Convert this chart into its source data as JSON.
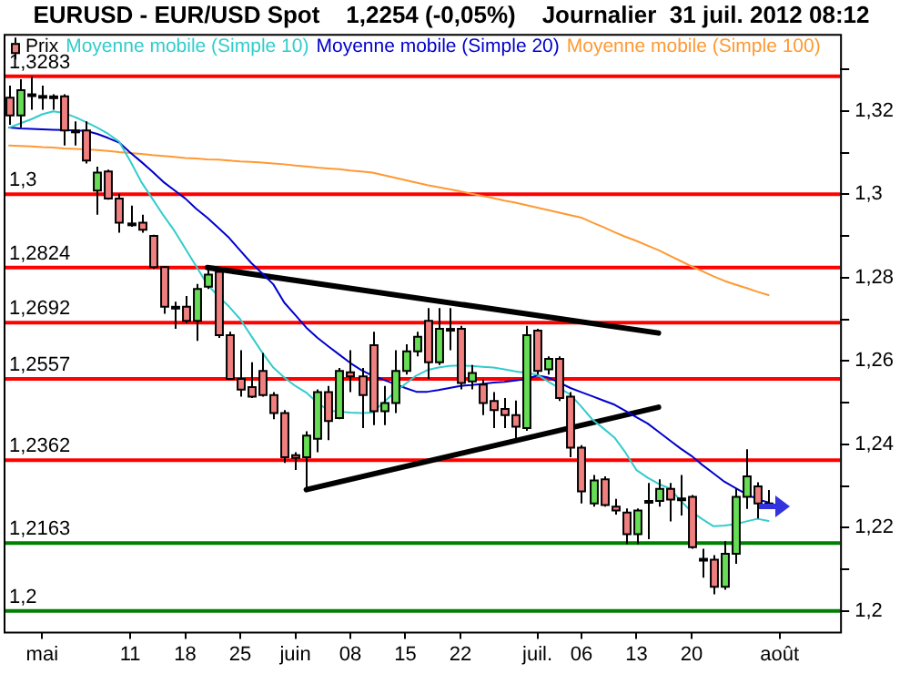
{
  "chart_data": {
    "type": "candlestick",
    "title": "EURUSD - EUR/USD Spot    1,2254 (-0,05%)    Journalier  31 juil. 2012 08:12",
    "categories": [
      null,
      null,
      null,
      "mai",
      null,
      null,
      null,
      null,
      null,
      null,
      null,
      "11",
      null,
      null,
      null,
      null,
      "18",
      null,
      null,
      null,
      null,
      "25",
      null,
      null,
      null,
      null,
      "juin",
      null,
      null,
      null,
      null,
      "08",
      null,
      null,
      null,
      null,
      "15",
      null,
      null,
      null,
      null,
      "22",
      null,
      null,
      null,
      null,
      null,
      null,
      "juil.",
      null,
      null,
      null,
      "06",
      null,
      null,
      null,
      null,
      "13",
      null,
      null,
      null,
      null,
      "20",
      null,
      null,
      null,
      null,
      null,
      null,
      null,
      "août",
      null,
      null,
      null,
      null,
      null
    ],
    "series": [
      {
        "name": "Prix",
        "type": "candlestick",
        "color": "#000000",
        "ohlc": [
          [
            1.3232,
            1.3261,
            1.3167,
            1.3189
          ],
          [
            1.3189,
            1.3276,
            1.316,
            1.325
          ],
          [
            1.324,
            1.3283,
            1.3203,
            1.3238
          ],
          [
            1.3236,
            1.3261,
            1.3203,
            1.3235
          ],
          [
            1.3235,
            1.324,
            1.3203,
            1.3233
          ],
          [
            1.3235,
            1.324,
            1.3117,
            1.3153
          ],
          [
            1.3153,
            1.3175,
            1.3117,
            1.3149
          ],
          [
            1.3153,
            1.3175,
            1.3074,
            1.3081
          ],
          [
            1.3009,
            1.3066,
            1.2951,
            1.3052
          ],
          [
            1.3055,
            1.3059,
            1.2987,
            1.299
          ],
          [
            1.299,
            1.3001,
            1.2908,
            1.2932
          ],
          [
            1.2929,
            1.2973,
            1.2922,
            1.293
          ],
          [
            1.2932,
            1.2951,
            1.2908,
            1.2915
          ],
          [
            1.29,
            1.2903,
            1.2821,
            1.2825
          ],
          [
            1.2825,
            1.2828,
            1.2713,
            1.273
          ],
          [
            1.273,
            1.2742,
            1.2677,
            1.2728
          ],
          [
            1.273,
            1.2756,
            1.2691,
            1.2696
          ],
          [
            1.2696,
            1.2785,
            1.2648,
            1.2773
          ],
          [
            1.2778,
            1.2824,
            1.2773,
            1.2807
          ],
          [
            1.2814,
            1.2821,
            1.2655,
            1.2662
          ],
          [
            1.2662,
            1.267,
            1.2554,
            1.2557
          ],
          [
            1.2557,
            1.2626,
            1.2514,
            1.2531
          ],
          [
            1.2537,
            1.2597,
            1.2511,
            1.2514
          ],
          [
            1.2576,
            1.2619,
            1.2514,
            1.2518
          ],
          [
            1.2518,
            1.2525,
            1.246,
            1.2475
          ],
          [
            1.2475,
            1.2482,
            1.2355,
            1.2369
          ],
          [
            1.2374,
            1.2381,
            1.2338,
            1.2367
          ],
          [
            1.2369,
            1.2431,
            1.2291,
            1.2421
          ],
          [
            1.2413,
            1.2532,
            1.2381,
            1.2525
          ],
          [
            1.2525,
            1.254,
            1.241,
            1.2456
          ],
          [
            1.2463,
            1.2583,
            1.246,
            1.2576
          ],
          [
            1.2573,
            1.2626,
            1.2525,
            1.2563
          ],
          [
            1.2563,
            1.2583,
            1.2439,
            1.2518
          ],
          [
            1.2638,
            1.267,
            1.2446,
            1.2479
          ],
          [
            1.2479,
            1.254,
            1.2446,
            1.2499
          ],
          [
            1.2499,
            1.2626,
            1.2475,
            1.2576
          ],
          [
            1.2576,
            1.264,
            1.2567,
            1.2623
          ],
          [
            1.2623,
            1.267,
            1.2611,
            1.2658
          ],
          [
            1.2696,
            1.2727,
            1.2557,
            1.2597
          ],
          [
            1.2597,
            1.2727,
            1.259,
            1.2677
          ],
          [
            1.2677,
            1.2727,
            1.2626,
            1.2675
          ],
          [
            1.2677,
            1.2684,
            1.2532,
            1.2547
          ],
          [
            1.2551,
            1.259,
            1.2532,
            1.2571
          ],
          [
            1.2543,
            1.2555,
            1.247,
            1.2499
          ],
          [
            1.2504,
            1.2525,
            1.2439,
            1.2482
          ],
          [
            1.2485,
            1.2511,
            1.2439,
            1.247
          ],
          [
            1.247,
            1.2505,
            1.2407,
            1.2442
          ],
          [
            1.2439,
            1.2684,
            1.2432,
            1.2662
          ],
          [
            1.2673,
            1.2677,
            1.2567,
            1.2576
          ],
          [
            1.258,
            1.2611,
            1.2567,
            1.2605
          ],
          [
            1.2605,
            1.2611,
            1.2504,
            1.2511
          ],
          [
            1.2514,
            1.2525,
            1.2369,
            1.2392
          ],
          [
            1.2392,
            1.2398,
            1.2258,
            1.2287
          ],
          [
            1.2258,
            1.2326,
            1.225,
            1.2313
          ],
          [
            1.2316,
            1.2323,
            1.225,
            1.2254
          ],
          [
            1.225,
            1.2269,
            1.2231,
            1.2241
          ],
          [
            1.2236,
            1.2246,
            1.216,
            1.2184
          ],
          [
            1.2184,
            1.2246,
            1.216,
            1.2241
          ],
          [
            1.2264,
            1.2307,
            1.2172,
            1.2262
          ],
          [
            1.2264,
            1.2316,
            1.225,
            1.2293
          ],
          [
            1.2293,
            1.2307,
            1.2215,
            1.2267
          ],
          [
            1.227,
            1.2326,
            1.2229,
            1.2268
          ],
          [
            1.2274,
            1.2278,
            1.2149,
            1.2153
          ],
          [
            1.2125,
            1.2149,
            1.208,
            1.2123
          ],
          [
            1.2123,
            1.2134,
            1.204,
            1.2058
          ],
          [
            1.2058,
            1.2167,
            1.2051,
            1.2137
          ],
          [
            1.2137,
            1.2293,
            1.2113,
            1.2274
          ],
          [
            1.2274,
            1.2388,
            1.2245,
            1.2323
          ],
          [
            1.2299,
            1.2309,
            1.2222,
            1.2258
          ],
          [
            1.2258,
            1.229,
            1.225,
            1.2254
          ],
          null,
          null,
          null,
          null,
          null,
          null
        ],
        "colors": [
          "#f08080",
          "#66dd55",
          "#f08080",
          "#f08080",
          "#f08080",
          "#f08080",
          "#f08080",
          "#f08080",
          "#66dd55",
          "#f08080",
          "#f08080",
          "#66dd55",
          "#f08080",
          "#f08080",
          "#f08080",
          "#f08080",
          "#f08080",
          "#66dd55",
          "#66dd55",
          "#f08080",
          "#f08080",
          "#f08080",
          "#f08080",
          "#f08080",
          "#f08080",
          "#f08080",
          "#f08080",
          "#66dd55",
          "#66dd55",
          "#f08080",
          "#66dd55",
          "#f08080",
          "#f08080",
          "#f08080",
          "#66dd55",
          "#66dd55",
          "#66dd55",
          "#66dd55",
          "#f08080",
          "#66dd55",
          "#f08080",
          "#f08080",
          "#66dd55",
          "#f08080",
          "#f08080",
          "#f08080",
          "#f08080",
          "#66dd55",
          "#f08080",
          "#66dd55",
          "#f08080",
          "#f08080",
          "#f08080",
          "#66dd55",
          "#f08080",
          "#f08080",
          "#f08080",
          "#66dd55",
          "#f08080",
          "#66dd55",
          "#f08080",
          "#f08080",
          "#f08080",
          "#f08080",
          "#f08080",
          "#66dd55",
          "#66dd55",
          "#66dd55",
          "#f08080",
          "#f08080",
          null,
          null,
          null,
          null,
          null,
          null
        ]
      },
      {
        "name": "Moyenne mobile (Simple 10)",
        "type": "line",
        "color": "#33cccc",
        "values": [
          1.316,
          1.317,
          1.318,
          1.3192,
          1.3199,
          1.3195,
          1.3185,
          1.3173,
          1.316,
          1.3145,
          1.3126,
          1.308,
          1.303,
          1.299,
          1.295,
          1.2913,
          1.287,
          1.2827,
          1.2784,
          1.2755,
          1.273,
          1.27,
          1.266,
          1.262,
          1.2584,
          1.256,
          1.254,
          1.2524,
          1.25,
          1.2481,
          1.2478,
          1.2476,
          1.2475,
          1.2476,
          1.25,
          1.2524,
          1.2545,
          1.2565,
          1.2578,
          1.2584,
          1.2588,
          1.2589,
          1.2588,
          1.2586,
          1.2584,
          1.258,
          1.2575,
          1.2571,
          1.2567,
          1.255,
          1.2535,
          1.2519,
          1.249,
          1.2459,
          1.2438,
          1.2416,
          1.238,
          1.2338,
          1.232,
          1.2305,
          1.2294,
          1.2265,
          1.2238,
          1.222,
          1.2203,
          1.2205,
          1.2208,
          1.2215,
          1.2221,
          1.2216,
          null,
          null,
          null,
          null,
          null,
          null
        ]
      },
      {
        "name": "Moyenne mobile (Simple 20)",
        "type": "line",
        "color": "#0000cc",
        "values": [
          1.316,
          1.3158,
          1.3157,
          1.3156,
          1.3155,
          1.3154,
          1.3153,
          1.3152,
          1.3145,
          1.3135,
          1.3124,
          1.31,
          1.3078,
          1.3055,
          1.303,
          1.301,
          1.299,
          1.2965,
          1.2944,
          1.292,
          1.2895,
          1.2865,
          1.2835,
          1.281,
          1.2784,
          1.274,
          1.271,
          1.268,
          1.2656,
          1.2635,
          1.2615,
          1.2595,
          1.2578,
          1.2565,
          1.2555,
          1.2545,
          1.2535,
          1.2526,
          1.2526,
          1.253,
          1.2535,
          1.254,
          1.2542,
          1.2545,
          1.2548,
          1.255,
          1.2553,
          1.2557,
          1.2565,
          1.256,
          1.2548,
          1.2535,
          1.2525,
          1.2515,
          1.2505,
          1.2495,
          1.248,
          1.2465,
          1.245,
          1.243,
          1.241,
          1.239,
          1.2372,
          1.235,
          1.233,
          1.231,
          1.2295,
          1.228,
          1.2268,
          1.226,
          null,
          null,
          null,
          null,
          null,
          null
        ]
      },
      {
        "name": "Moyenne mobile (Simple 100)",
        "type": "line",
        "color": "#ff9933",
        "values": [
          1.3117,
          1.3116,
          1.3115,
          1.3113,
          1.3112,
          1.311,
          1.3109,
          1.3108,
          1.3106,
          1.3104,
          1.3101,
          1.3099,
          1.3097,
          1.3094,
          1.3092,
          1.309,
          1.3087,
          1.3086,
          1.3084,
          1.3083,
          1.3081,
          1.3079,
          1.3078,
          1.3076,
          1.3074,
          1.3072,
          1.3069,
          1.3067,
          1.3064,
          1.3062,
          1.306,
          1.3057,
          1.3055,
          1.3052,
          1.3046,
          1.304,
          1.3034,
          1.3028,
          1.3022,
          1.3017,
          1.3012,
          1.3007,
          1.3001,
          1.2996,
          1.2991,
          1.2985,
          1.298,
          1.2974,
          1.2968,
          1.2962,
          1.2956,
          1.295,
          1.2944,
          1.2932,
          1.2921,
          1.2909,
          1.2898,
          1.2888,
          1.2877,
          1.2866,
          1.2853,
          1.284,
          1.2827,
          1.2815,
          1.2803,
          1.2792,
          1.2783,
          1.2775,
          1.2766,
          1.2758,
          null,
          null,
          null,
          null,
          null,
          null
        ]
      },
      {
        "type": "line",
        "color": "#000000",
        "values": [
          null,
          null,
          null,
          null,
          null,
          null,
          null,
          null,
          null,
          null,
          null,
          null,
          null,
          null,
          null,
          null,
          null,
          null,
          1.2824,
          null,
          null,
          null,
          null,
          null,
          null,
          null,
          null,
          null,
          null,
          null,
          null,
          null,
          null,
          null,
          null,
          null,
          null,
          null,
          null,
          null,
          null,
          null,
          null,
          null,
          null,
          null,
          null,
          null,
          null,
          null,
          null,
          null,
          null,
          null,
          null,
          null,
          null,
          null,
          null,
          1.2667,
          null,
          null,
          null,
          null,
          null,
          null,
          null,
          null,
          null,
          null,
          null,
          null,
          null,
          null,
          null,
          null
        ]
      },
      {
        "type": "line",
        "color": "#000000",
        "values": [
          null,
          null,
          null,
          null,
          null,
          null,
          null,
          null,
          null,
          null,
          null,
          null,
          null,
          null,
          null,
          null,
          null,
          null,
          null,
          null,
          null,
          null,
          null,
          null,
          null,
          null,
          null,
          1.2291,
          null,
          null,
          null,
          null,
          null,
          null,
          null,
          null,
          null,
          null,
          null,
          null,
          null,
          null,
          null,
          null,
          null,
          null,
          null,
          null,
          null,
          null,
          null,
          null,
          null,
          null,
          null,
          null,
          null,
          null,
          null,
          1.2489,
          null,
          null,
          null,
          null,
          null,
          null,
          null,
          null,
          null,
          null,
          null,
          null,
          null,
          null,
          null,
          null
        ]
      }
    ],
    "ylim": [
      1.195,
      1.3385
    ],
    "yticks": [
      {
        "value": 1.2,
        "label": "1,2"
      },
      {
        "value": 1.21,
        "label": null
      },
      {
        "value": 1.22,
        "label": "1,22"
      },
      {
        "value": 1.23,
        "label": null
      },
      {
        "value": 1.24,
        "label": "1,24"
      },
      {
        "value": 1.25,
        "label": null
      },
      {
        "value": 1.26,
        "label": "1,26"
      },
      {
        "value": 1.27,
        "label": null
      },
      {
        "value": 1.28,
        "label": "1,28"
      },
      {
        "value": 1.29,
        "label": null
      },
      {
        "value": 1.3,
        "label": "1,3"
      },
      {
        "value": 1.31,
        "label": null
      },
      {
        "value": 1.32,
        "label": "1,32"
      },
      {
        "value": 1.33,
        "label": null
      }
    ],
    "ref_lines": [
      {
        "axis": "y",
        "value": 1.3283,
        "label": "1,3283",
        "color": "#ff0000"
      },
      {
        "axis": "y",
        "value": 1.3,
        "label": "1,3",
        "color": "#ff0000"
      },
      {
        "axis": "y",
        "value": 1.2824,
        "label": "1,2824",
        "color": "#ff0000"
      },
      {
        "axis": "y",
        "value": 1.2692,
        "label": "1,2692",
        "color": "#ff0000"
      },
      {
        "axis": "y",
        "value": 1.2557,
        "label": "1,2557",
        "color": "#ff0000"
      },
      {
        "axis": "y",
        "value": 1.2362,
        "label": "1,2362",
        "color": "#ff0000"
      },
      {
        "axis": "y",
        "value": 1.2163,
        "label": "1,2163",
        "color": "#008000"
      },
      {
        "axis": "y",
        "value": 1.2,
        "label": "1,2",
        "color": "#008000"
      }
    ],
    "legend": "top left",
    "marker": "none"
  }
}
